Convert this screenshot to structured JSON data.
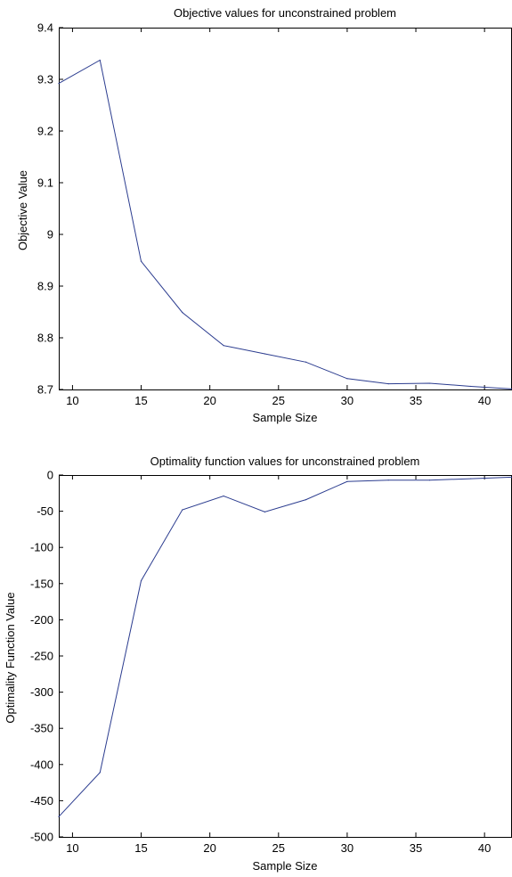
{
  "colors": {
    "line": "#2b3c8f",
    "axis": "#000000",
    "background": "#ffffff"
  },
  "chart_data": [
    {
      "type": "line",
      "title": "Objective values for unconstrained problem",
      "xlabel": "Sample Size",
      "ylabel": "Objective Value",
      "xlim": [
        9,
        42
      ],
      "ylim": [
        8.7,
        9.4
      ],
      "xticks": [
        10,
        15,
        20,
        25,
        30,
        35,
        40
      ],
      "xtick_labels": [
        "10",
        "15",
        "20",
        "25",
        "30",
        "35",
        "40"
      ],
      "yticks": [
        8.7,
        8.8,
        8.9,
        9,
        9.1,
        9.2,
        9.3,
        9.4
      ],
      "ytick_labels": [
        "8.7",
        "8.8",
        "8.9",
        "9",
        "9.1",
        "9.2",
        "9.3",
        "9.4"
      ],
      "grid": false,
      "series": [
        {
          "x": [
            9,
            12,
            15,
            18,
            21,
            24,
            27,
            30,
            33,
            36,
            39,
            42
          ],
          "y": [
            9.292,
            9.337,
            8.948,
            8.849,
            8.785,
            8.769,
            8.753,
            8.721,
            8.711,
            8.712,
            8.706,
            8.701
          ]
        }
      ]
    },
    {
      "type": "line",
      "title": "Optimality function values for unconstrained problem",
      "xlabel": "Sample Size",
      "ylabel": "Optimality Function Value",
      "xlim": [
        9,
        42
      ],
      "ylim": [
        -500,
        0
      ],
      "xticks": [
        10,
        15,
        20,
        25,
        30,
        35,
        40
      ],
      "xtick_labels": [
        "10",
        "15",
        "20",
        "25",
        "30",
        "35",
        "40"
      ],
      "yticks": [
        -500,
        -450,
        -400,
        -350,
        -300,
        -250,
        -200,
        -150,
        -100,
        -50,
        0
      ],
      "ytick_labels": [
        "-500",
        "-450",
        "-400",
        "-350",
        "-300",
        "-250",
        "-200",
        "-150",
        "-100",
        "-50",
        "0"
      ],
      "grid": false,
      "series": [
        {
          "x": [
            9,
            12,
            15,
            18,
            21,
            24,
            27,
            30,
            33,
            36,
            39,
            42
          ],
          "y": [
            -472,
            -411,
            -146,
            -48,
            -29,
            -51,
            -34,
            -9,
            -7,
            -7,
            -5,
            -3
          ]
        }
      ]
    }
  ]
}
